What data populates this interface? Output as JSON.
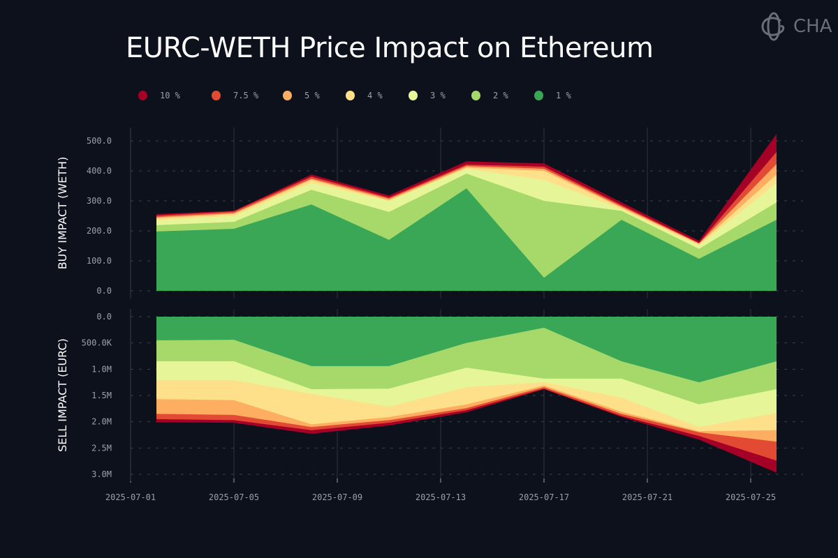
{
  "title": "EURC-WETH Price Impact on Ethereum",
  "logo_text": "CHAOS",
  "chart_data": [
    {
      "type": "area",
      "ylabel": "BUY IMPACT (WETH)",
      "ylim": [
        0,
        550
      ],
      "yticks": [
        0,
        100,
        200,
        300,
        400,
        500
      ],
      "ytick_labels": [
        "0.0",
        "100.0",
        "200.0",
        "300.0",
        "400.0",
        "500.0"
      ],
      "x": [
        "2025-07-02",
        "2025-07-05",
        "2025-07-08",
        "2025-07-11",
        "2025-07-14",
        "2025-07-17",
        "2025-07-20",
        "2025-07-23",
        "2025-07-26"
      ],
      "series": [
        {
          "name": "10 %",
          "color": "#a50026",
          "values": [
            256,
            267,
            388,
            318,
            432,
            425,
            295,
            167,
            523
          ]
        },
        {
          "name": "7.5 %",
          "color": "#e34a33",
          "values": [
            251,
            265,
            381,
            311,
            421,
            414,
            286,
            160,
            463
          ]
        },
        {
          "name": "5 %",
          "color": "#fdae61",
          "values": [
            246,
            260,
            374,
            307,
            416,
            407,
            281,
            158,
            423
          ]
        },
        {
          "name": "4 %",
          "color": "#fee08b",
          "values": [
            242,
            256,
            370,
            302,
            411,
            400,
            277,
            156,
            388
          ]
        },
        {
          "name": "3 %",
          "color": "#e6f598",
          "values": [
            235,
            250,
            360,
            300,
            407,
            370,
            272,
            151,
            360
          ]
        },
        {
          "name": "2 %",
          "color": "#a6d96a",
          "values": [
            219,
            230,
            337,
            263,
            391,
            300,
            267,
            140,
            295
          ]
        },
        {
          "name": "1 %",
          "color": "#3aa757",
          "values": [
            198,
            207,
            288,
            170,
            342,
            44,
            237,
            107,
            237
          ]
        }
      ]
    },
    {
      "type": "area",
      "ylabel": "SELL IMPACT (EURC)",
      "ylim": [
        0,
        3000000
      ],
      "inverted": true,
      "yticks": [
        0,
        500000,
        1000000,
        1500000,
        2000000,
        2500000,
        3000000
      ],
      "ytick_labels": [
        "0.0",
        "500.0K",
        "1.0M",
        "1.5M",
        "2.0M",
        "2.5M",
        "3.0M"
      ],
      "x": [
        "2025-07-02",
        "2025-07-05",
        "2025-07-08",
        "2025-07-11",
        "2025-07-14",
        "2025-07-17",
        "2025-07-20",
        "2025-07-23",
        "2025-07-26"
      ],
      "series": [
        {
          "name": "10 %",
          "color": "#a50026",
          "values": [
            2010000,
            2020000,
            2230000,
            2070000,
            1820000,
            1380000,
            1910000,
            2340000,
            2970000
          ]
        },
        {
          "name": "7.5 %",
          "color": "#e34a33",
          "values": [
            1950000,
            1970000,
            2160000,
            2020000,
            1780000,
            1370000,
            1890000,
            2270000,
            2740000
          ]
        },
        {
          "name": "5 %",
          "color": "#fdae61",
          "values": [
            1850000,
            1870000,
            2100000,
            1970000,
            1740000,
            1340000,
            1850000,
            2200000,
            2380000
          ]
        },
        {
          "name": "4 %",
          "color": "#fee08b",
          "values": [
            1570000,
            1590000,
            2050000,
            1910000,
            1670000,
            1310000,
            1810000,
            2180000,
            2160000
          ]
        },
        {
          "name": "3 %",
          "color": "#e6f598",
          "values": [
            1210000,
            1210000,
            1470000,
            1710000,
            1340000,
            1250000,
            1540000,
            2100000,
            1830000
          ]
        },
        {
          "name": "2 %",
          "color": "#a6d96a",
          "values": [
            850000,
            850000,
            1380000,
            1370000,
            970000,
            1180000,
            1180000,
            1670000,
            1380000
          ]
        },
        {
          "name": "1 %",
          "color": "#3aa757",
          "values": [
            450000,
            440000,
            940000,
            940000,
            500000,
            210000,
            850000,
            1250000,
            850000
          ]
        }
      ]
    }
  ],
  "xtick_labels": [
    "2025-07-01",
    "2025-07-05",
    "2025-07-09",
    "2025-07-13",
    "2025-07-17",
    "2025-07-21",
    "2025-07-25"
  ]
}
